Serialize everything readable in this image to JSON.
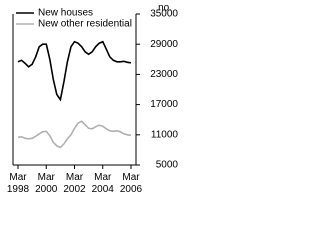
{
  "chart_data": {
    "type": "line",
    "categories": [
      "Mar 1998",
      null,
      null,
      null,
      null,
      null,
      null,
      null,
      "Mar 2000",
      null,
      null,
      null,
      null,
      null,
      null,
      null,
      "Mar 2002",
      null,
      null,
      null,
      null,
      null,
      null,
      null,
      "Mar 2004",
      null,
      null,
      null,
      null,
      null,
      null,
      null,
      "Mar 2006"
    ],
    "series": [
      {
        "name": "New houses",
        "color": "#000000",
        "values": [
          25500,
          25800,
          25200,
          24500,
          25000,
          26500,
          28500,
          29000,
          29000,
          26000,
          22000,
          19000,
          18000,
          21500,
          25500,
          28500,
          29500,
          29200,
          28500,
          27500,
          27000,
          27500,
          28500,
          29200,
          29500,
          28000,
          26500,
          25800,
          25500,
          25500,
          25600,
          25400,
          25300
        ]
      },
      {
        "name": "New other residential",
        "color": "#b0b0b0",
        "values": [
          10500,
          10600,
          10300,
          10200,
          10300,
          10700,
          11200,
          11600,
          11700,
          10800,
          9500,
          8800,
          8500,
          9200,
          10200,
          11000,
          12300,
          13300,
          13700,
          13000,
          12300,
          12200,
          12600,
          12900,
          12700,
          12200,
          11800,
          11700,
          11800,
          11600,
          11200,
          11000,
          10900
        ]
      }
    ],
    "y_label": "no.",
    "ylim": [
      5000,
      35000
    ],
    "yticks": [
      5000,
      11000,
      17000,
      23000,
      29000,
      35000
    ],
    "grid": false,
    "legend": "upper left"
  }
}
